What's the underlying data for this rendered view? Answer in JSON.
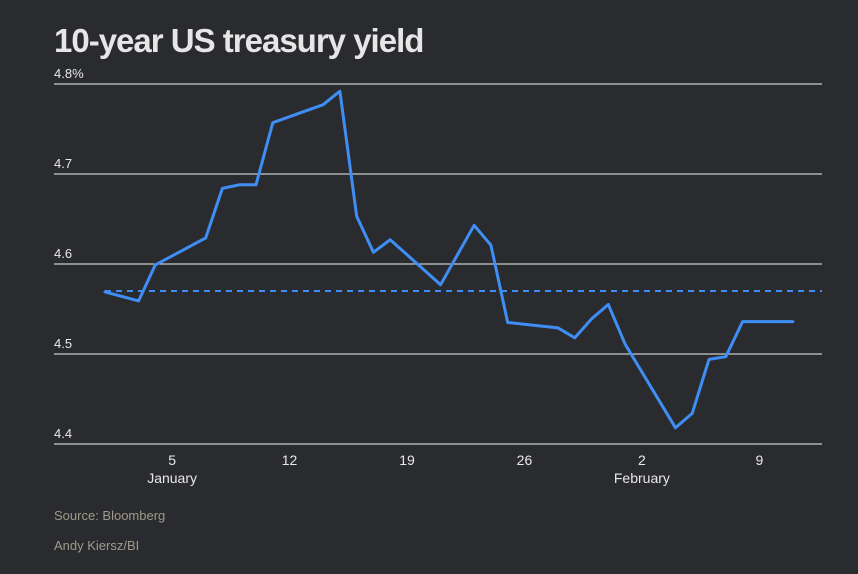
{
  "title": "10-year US treasury yield",
  "source": "Source: Bloomberg",
  "author": "Andy Kiersz/BI",
  "colors": {
    "background": "#2a2b2e",
    "line": "#3f8ef5",
    "grid": "#f0f0f0",
    "text": "#e8e8e8"
  },
  "chart_data": {
    "type": "line",
    "title": "10-year US treasury yield",
    "y_tick_labels": [
      "4.8%",
      "4.7",
      "4.6",
      "4.5",
      "4.4"
    ],
    "y_ticks": [
      4.8,
      4.7,
      4.6,
      4.5,
      4.4
    ],
    "ylim": [
      4.4,
      4.8
    ],
    "x_tick_labels": [
      "5",
      "12",
      "19",
      "26",
      "2",
      "9"
    ],
    "x_month_labels": [
      "January",
      "",
      "",
      "",
      "February",
      ""
    ],
    "grid": true,
    "reference_line": {
      "value": 4.57,
      "style": "dashed"
    },
    "series": [
      {
        "x": [
          "Jan 1",
          "Jan 3",
          "Jan 4",
          "Jan 7",
          "Jan 8",
          "Jan 9",
          "Jan 10",
          "Jan 11",
          "Jan 14",
          "Jan 15",
          "Jan 16",
          "Jan 17",
          "Jan 18",
          "Jan 21",
          "Jan 23",
          "Jan 24",
          "Jan 25",
          "Jan 28",
          "Jan 29",
          "Jan 30",
          "Jan 31",
          "Feb 1",
          "Feb 4",
          "Feb 5",
          "Feb 6",
          "Feb 7",
          "Feb 8",
          "Feb 11"
        ],
        "values": [
          4.569,
          4.559,
          4.599,
          4.629,
          4.684,
          4.688,
          4.688,
          4.757,
          4.777,
          4.792,
          4.653,
          4.613,
          4.627,
          4.577,
          4.643,
          4.621,
          4.535,
          4.529,
          4.518,
          4.539,
          4.555,
          4.511,
          4.418,
          4.434,
          4.494,
          4.497,
          4.536,
          4.536
        ]
      }
    ]
  }
}
